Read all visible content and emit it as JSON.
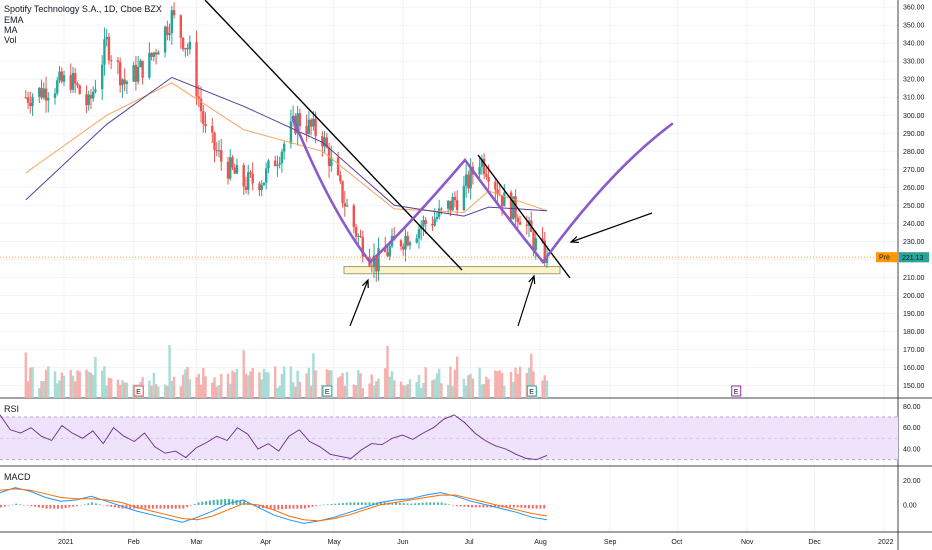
{
  "header": {
    "title": "Spotify Technology S.A., 1D, Cboe BZX",
    "indicators": [
      "EMA",
      "MA",
      "Vol"
    ]
  },
  "colors": {
    "up": "#26a69a",
    "down": "#ef5350",
    "ema": "#f7a35c",
    "ma": "#5b3d99",
    "pattern": "#8b5cc8",
    "support_fill": "#fbf3c8",
    "rsi_band": "#efe2fb",
    "rsi_line": "#6b2c8a",
    "macd_line": "#2196f3",
    "signal_line": "#ff6d00",
    "pre_badge": "#ff9800",
    "last_badge": "#26a69a"
  },
  "price_panel": {
    "badges": {
      "pre_label": "Pre",
      "pre_value": "221.18",
      "last_value": "221.13"
    },
    "event_marker": "E"
  },
  "rsi_panel": {
    "label": "RSI",
    "ticks": [
      "80.00",
      "60.00",
      "40.00"
    ]
  },
  "macd_panel": {
    "label": "MACD",
    "ticks": [
      "20.00",
      "0.00"
    ]
  },
  "time_axis": [
    "2021",
    "Feb",
    "Mar",
    "Apr",
    "May",
    "Jun",
    "Jul",
    "Aug",
    "Sep",
    "Oct",
    "Nov",
    "Dec",
    "2022"
  ],
  "chart_data": {
    "type": "candlestick",
    "title": "Spotify Technology S.A., 1D, Cboe BZX",
    "y_ticks": [
      150,
      160,
      170,
      180,
      190,
      200,
      210,
      220,
      230,
      240,
      250,
      260,
      270,
      280,
      290,
      300,
      310,
      320,
      330,
      340,
      350,
      360
    ],
    "ylim": [
      143,
      364
    ],
    "price_path": [
      [
        "2020-12-15",
        310
      ],
      [
        "2021-01-04",
        320
      ],
      [
        "2021-01-12",
        305
      ],
      [
        "2021-01-20",
        340
      ],
      [
        "2021-01-28",
        318
      ],
      [
        "2021-02-08",
        330
      ],
      [
        "2021-02-18",
        355
      ],
      [
        "2021-02-26",
        335
      ],
      [
        "2021-03-05",
        290
      ],
      [
        "2021-03-12",
        275
      ],
      [
        "2021-03-22",
        262
      ],
      [
        "2021-03-31",
        265
      ],
      [
        "2021-04-08",
        282
      ],
      [
        "2021-04-15",
        298
      ],
      [
        "2021-04-26",
        288
      ],
      [
        "2021-05-04",
        258
      ],
      [
        "2021-05-12",
        232
      ],
      [
        "2021-05-20",
        218
      ],
      [
        "2021-05-28",
        228
      ],
      [
        "2021-06-08",
        238
      ],
      [
        "2021-06-18",
        245
      ],
      [
        "2021-06-28",
        258
      ],
      [
        "2021-07-05",
        276
      ],
      [
        "2021-07-09",
        270
      ],
      [
        "2021-07-16",
        252
      ],
      [
        "2021-07-23",
        245
      ],
      [
        "2021-07-30",
        228
      ],
      [
        "2021-08-04",
        221.13
      ]
    ],
    "series": [
      {
        "name": "EMA",
        "path": [
          [
            "2020-12-15",
            268
          ],
          [
            "2021-01-20",
            300
          ],
          [
            "2021-02-18",
            318
          ],
          [
            "2021-03-22",
            292
          ],
          [
            "2021-04-26",
            280
          ],
          [
            "2021-05-28",
            248
          ],
          [
            "2021-06-28",
            246
          ],
          [
            "2021-07-09",
            258
          ],
          [
            "2021-08-04",
            247
          ]
        ]
      },
      {
        "name": "MA",
        "path": [
          [
            "2020-12-15",
            253
          ],
          [
            "2021-01-20",
            295
          ],
          [
            "2021-02-18",
            321
          ],
          [
            "2021-03-22",
            305
          ],
          [
            "2021-04-26",
            285
          ],
          [
            "2021-05-28",
            250
          ],
          [
            "2021-06-28",
            244
          ],
          [
            "2021-07-09",
            249
          ],
          [
            "2021-08-04",
            247
          ]
        ]
      }
    ],
    "pre_market": 221.18,
    "last": 221.13,
    "support_zone": [
      212,
      216
    ],
    "rsi": {
      "ylim": [
        24,
        86
      ],
      "ticks": [
        80,
        60,
        40
      ],
      "band": [
        30,
        70
      ],
      "values": [
        72,
        58,
        55,
        60,
        52,
        48,
        62,
        55,
        50,
        57,
        45,
        60,
        52,
        47,
        55,
        42,
        36,
        38,
        32,
        41,
        46,
        52,
        48,
        60,
        54,
        40,
        45,
        38,
        52,
        58,
        47,
        42,
        35,
        33,
        31,
        39,
        45,
        44,
        50,
        53,
        49,
        55,
        60,
        68,
        72,
        65,
        55,
        48,
        43,
        40,
        35,
        31,
        30,
        34
      ]
    },
    "macd": {
      "ylim": [
        -22,
        30
      ],
      "ticks": [
        20,
        0
      ],
      "macd": [
        10,
        14,
        11,
        6,
        3,
        4,
        7,
        3,
        -1,
        -5,
        -8,
        -11,
        -14,
        -10,
        -5,
        1,
        4,
        -2,
        -8,
        -12,
        -15,
        -13,
        -10,
        -6,
        -2,
        2,
        4,
        5,
        8,
        10,
        7,
        3,
        0,
        -3,
        -6,
        -10,
        -12
      ],
      "signal": [
        12,
        13,
        12,
        9,
        6,
        5,
        5,
        4,
        2,
        -2,
        -5,
        -8,
        -11,
        -12,
        -9,
        -4,
        1,
        0,
        -4,
        -9,
        -12,
        -13,
        -11,
        -8,
        -4,
        0,
        2,
        4,
        6,
        8,
        8,
        5,
        2,
        -1,
        -4,
        -7,
        -9
      ]
    }
  }
}
